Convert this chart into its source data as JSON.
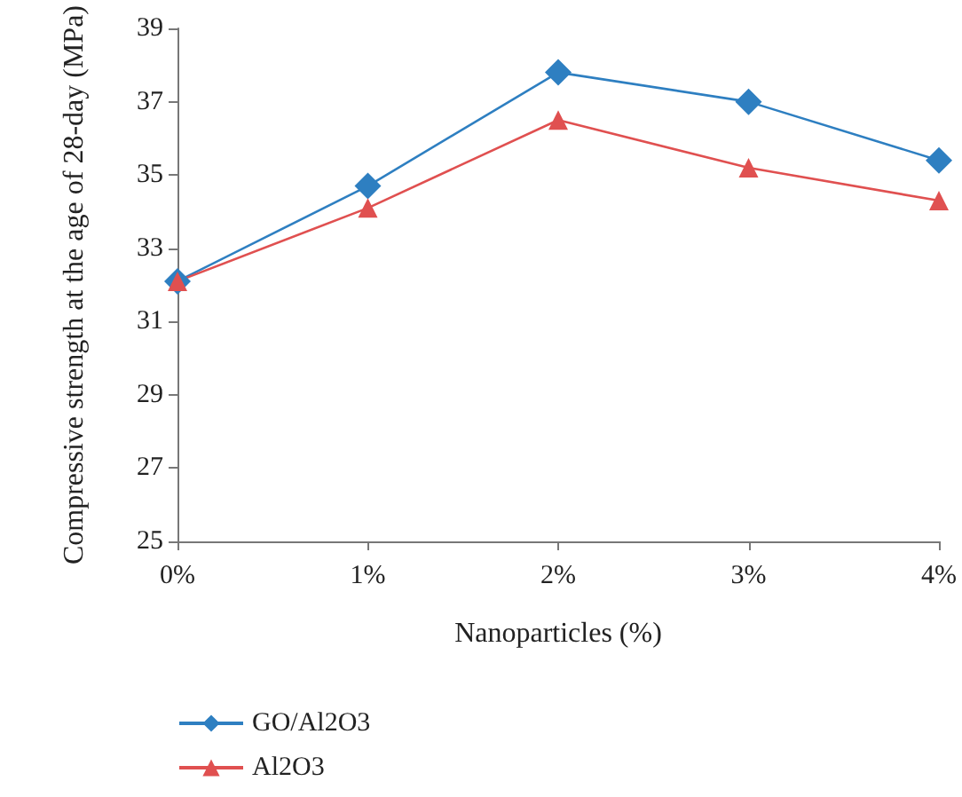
{
  "chart_data": {
    "type": "line",
    "xlabel": "Nanoparticles (%)",
    "ylabel": "Compressive strength at the age of 28-day (MPa)",
    "categories": [
      "0%",
      "1%",
      "2%",
      "3%",
      "4%"
    ],
    "series": [
      {
        "name": "GO/Al2O3",
        "color": "#2e7fc1",
        "marker": "diamond",
        "values": [
          32.1,
          34.7,
          37.8,
          37.0,
          35.4
        ]
      },
      {
        "name": "Al2O3",
        "color": "#e05050",
        "marker": "triangle",
        "values": [
          32.1,
          34.1,
          36.5,
          35.2,
          34.3
        ]
      }
    ],
    "ylim": [
      25,
      39
    ],
    "yticks": [
      25,
      27,
      29,
      31,
      33,
      35,
      37,
      39
    ],
    "grid": false,
    "legend": "bottom left",
    "line_style": "solid"
  }
}
